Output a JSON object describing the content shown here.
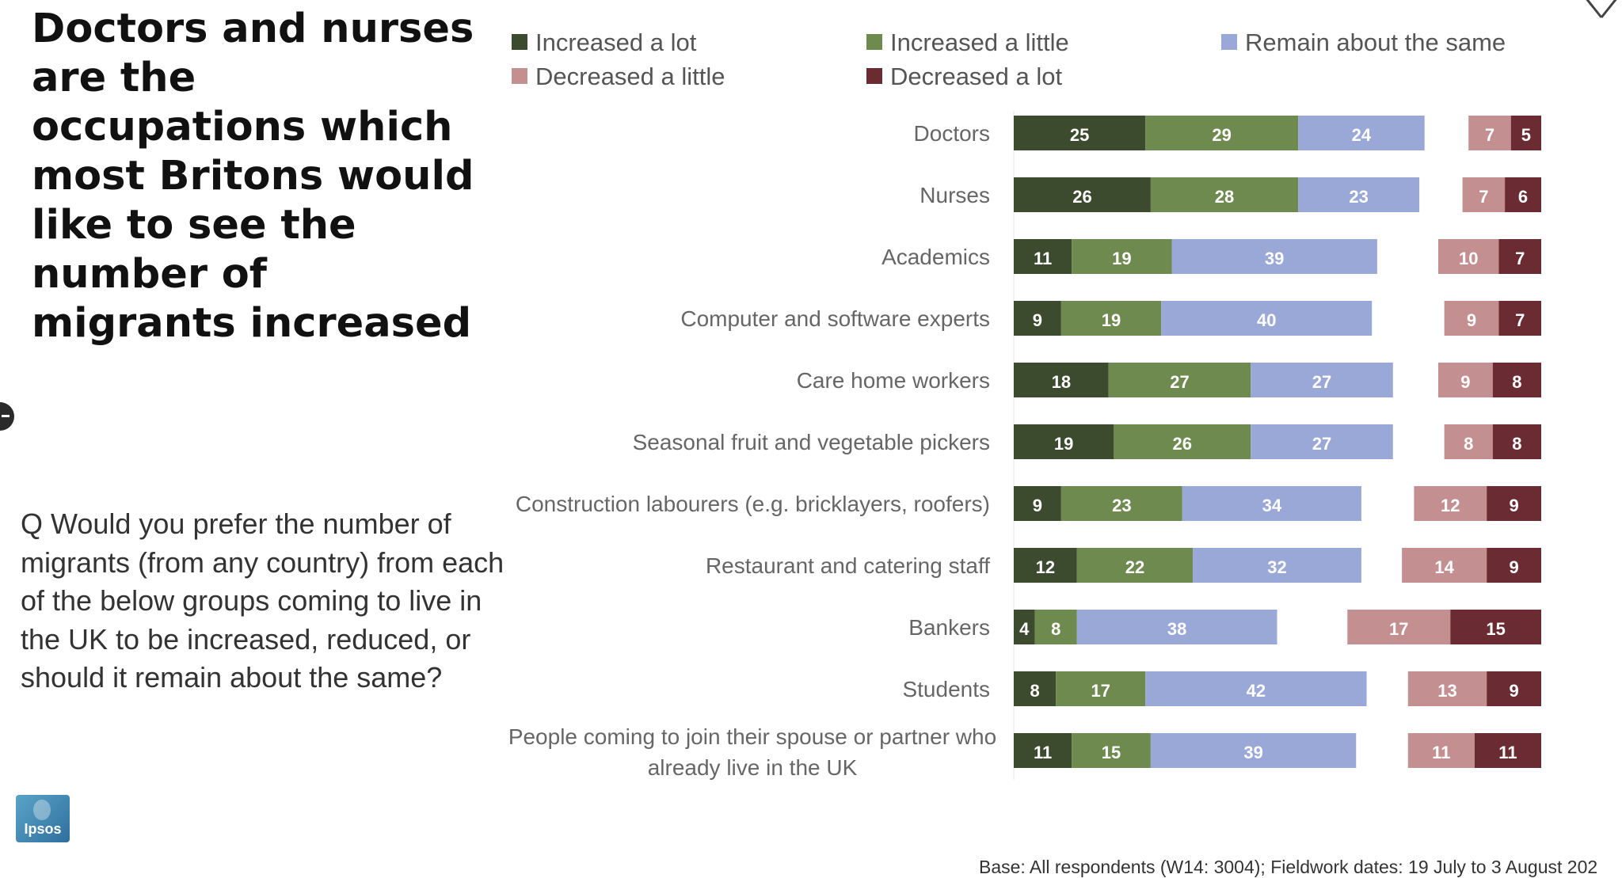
{
  "headline": "Doctors and nurses are the occupations which most Britons would like to see the number of migrants increased",
  "question": "Q Would you prefer the number of migrants (from any country) from each of the below groups coming to live in the UK to be increased, reduced, or should it remain about the same?",
  "footer": "Base: All respondents (W14: 3004); Fieldwork dates: 19 July to 3 August 202",
  "logo_text": "Ipsos",
  "icons": {
    "close": "close-icon",
    "side": "collapse-handle-icon"
  },
  "chart_data": {
    "type": "bar",
    "orientation": "horizontal",
    "stacked": true,
    "legend_position": "top",
    "categories": [
      "Doctors",
      "Nurses",
      "Academics",
      "Computer and software experts",
      "Care home workers",
      "Seasonal fruit and vegetable pickers",
      "Construction labourers (e.g. bricklayers, roofers)",
      "Restaurant and catering staff",
      "Bankers",
      "Students",
      "People coming to join their spouse or partner who already live in the UK"
    ],
    "series": [
      {
        "name": "Increased a lot",
        "color": "#3c4a2d",
        "group": "increase",
        "values": [
          25,
          26,
          11,
          9,
          18,
          19,
          9,
          12,
          4,
          8,
          11
        ]
      },
      {
        "name": "Increased a little",
        "color": "#6f8a4f",
        "group": "increase",
        "values": [
          29,
          28,
          19,
          19,
          27,
          26,
          23,
          22,
          8,
          17,
          15
        ]
      },
      {
        "name": "Remain about the same",
        "color": "#9aa8d8",
        "group": "increase",
        "values": [
          24,
          23,
          39,
          40,
          27,
          27,
          34,
          32,
          38,
          42,
          39
        ]
      },
      {
        "name": "Decreased a little",
        "color": "#c48f90",
        "group": "decrease",
        "values": [
          7,
          7,
          10,
          9,
          9,
          8,
          12,
          14,
          17,
          13,
          11
        ]
      },
      {
        "name": "Decreased a lot",
        "color": "#6a2c32",
        "group": "decrease",
        "values": [
          5,
          6,
          7,
          7,
          8,
          8,
          9,
          9,
          15,
          9,
          11
        ]
      }
    ],
    "legend_rows": [
      [
        "Increased a lot",
        "Increased a little",
        "Remain about the same"
      ],
      [
        "Decreased a little",
        "Decreased a lot"
      ]
    ]
  }
}
